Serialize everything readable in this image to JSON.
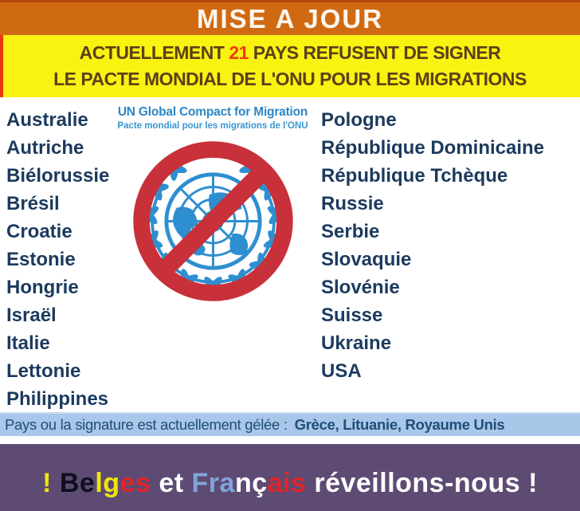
{
  "header": {
    "title": "MISE A JOUR"
  },
  "subheader": {
    "line1_pre": "ACTUELLEMENT ",
    "line1_count": "21",
    "line1_post": " PAYS REFUSENT DE SIGNER",
    "line2": "LE  PACTE MONDIAL DE L'ONU POUR LES MIGRATIONS"
  },
  "logo": {
    "title": "UN Global Compact for Migration",
    "subtitle": "Pacte mondial pour les migrations de l'ONU",
    "emblem_icon": "un-emblem-no-sign-icon"
  },
  "countries": {
    "left": [
      "Australie",
      "Autriche",
      "Biélorussie",
      "Brésil",
      "Croatie",
      "Estonie",
      "Hongrie",
      "Israël",
      "Italie",
      "Lettonie",
      "Philippines"
    ],
    "right": [
      "Pologne",
      "République Dominicaine",
      "République Tchèque",
      "Russie",
      "Serbie",
      "Slovaquie",
      "Slovénie",
      "Suisse",
      "Ukraine",
      "USA"
    ]
  },
  "frozen_banner": {
    "label": "Pays ou la signature est actuellement gélée :",
    "countries": "Grèce, Lituanie, Royaume Unis"
  },
  "footer": {
    "segments": [
      {
        "text": "! ",
        "color": "#F2E30C"
      },
      {
        "text": "Be",
        "color": "#0E1020"
      },
      {
        "text": "lg",
        "color": "#F2E30C"
      },
      {
        "text": "es",
        "color": "#E02428"
      },
      {
        "text": " et ",
        "color": "#FFFFFF"
      },
      {
        "text": "Fra",
        "color": "#7FA5DB"
      },
      {
        "text": "nç",
        "color": "#FFFFFF"
      },
      {
        "text": "ais",
        "color": "#E02428"
      },
      {
        "text": " réveillons-nous !",
        "color": "#FFFFFF"
      }
    ]
  },
  "colors": {
    "top_band": "#D06A12",
    "yellow_band": "#FAF211",
    "headline_text": "#5C4017",
    "headline_count": "#EE3D0C",
    "country_text": "#1C3A5E",
    "emblem_blue": "#2E8FD0",
    "prohibition_red": "#C8303A",
    "frozen_band_bg": "#A9C7E8",
    "frozen_band_text": "#1F4E79",
    "bottom_band_bg": "#5E4B73"
  }
}
